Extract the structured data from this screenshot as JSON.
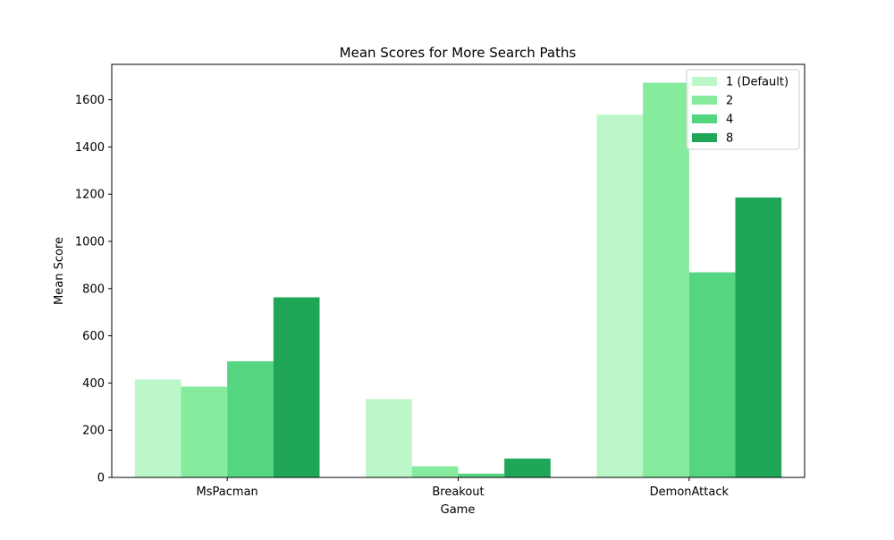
{
  "chart_data": {
    "type": "bar",
    "title": "Mean Scores for More Search Paths",
    "xlabel": "Game",
    "ylabel": "Mean Score",
    "categories": [
      "MsPacman",
      "Breakout",
      "DemonAttack"
    ],
    "ylim": [
      0,
      1750
    ],
    "yticks": [
      0,
      200,
      400,
      600,
      800,
      1000,
      1200,
      1400,
      1600
    ],
    "grid": false,
    "legend_position": "top-right",
    "series": [
      {
        "name": "1 (Default)",
        "color": "#bbf7c9",
        "values": [
          415,
          332,
          1537
        ]
      },
      {
        "name": "2",
        "color": "#86eb9d",
        "values": [
          385,
          47,
          1672
        ]
      },
      {
        "name": "4",
        "color": "#53d67f",
        "values": [
          492,
          16,
          869
        ]
      },
      {
        "name": "8",
        "color": "#1fa757",
        "values": [
          763,
          80,
          1186
        ]
      }
    ]
  }
}
